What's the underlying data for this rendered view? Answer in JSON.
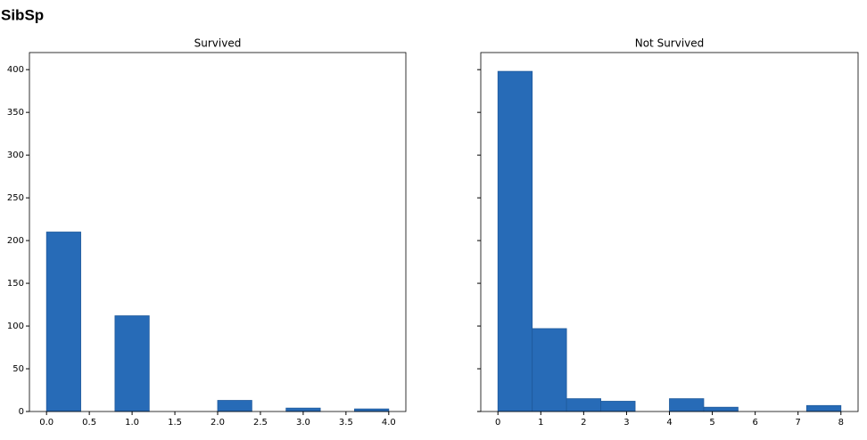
{
  "title": "SibSp",
  "chart_data": [
    {
      "type": "histogram",
      "title": "Survived",
      "color": "#276bb7",
      "bins": [
        0,
        0.4,
        0.8,
        1.2,
        1.6,
        2.0,
        2.4,
        2.8,
        3.2,
        3.6,
        4.0
      ],
      "values": [
        210,
        0,
        112,
        0,
        0,
        13,
        0,
        4,
        0,
        3
      ],
      "xlim": [
        -0.2,
        4.2
      ],
      "ylim": [
        0,
        420
      ],
      "xticks": [
        {
          "value": 0,
          "label": "0.0"
        },
        {
          "value": 0.5,
          "label": "0.5"
        },
        {
          "value": 1,
          "label": "1.0"
        },
        {
          "value": 1.5,
          "label": "1.5"
        },
        {
          "value": 2,
          "label": "2.0"
        },
        {
          "value": 2.5,
          "label": "2.5"
        },
        {
          "value": 3,
          "label": "3.0"
        },
        {
          "value": 3.5,
          "label": "3.5"
        },
        {
          "value": 4,
          "label": "4.0"
        }
      ],
      "yticks": [
        0,
        50,
        100,
        150,
        200,
        250,
        300,
        350,
        400
      ]
    },
    {
      "type": "histogram",
      "title": "Not Survived",
      "color": "#276bb7",
      "bins": [
        0,
        0.8,
        1.6,
        2.4,
        3.2,
        4.0,
        4.8,
        5.6,
        6.4,
        7.2,
        8.0
      ],
      "values": [
        398,
        97,
        15,
        12,
        0,
        15,
        5,
        0,
        0,
        7
      ],
      "xlim": [
        -0.4,
        8.4
      ],
      "ylim": [
        0,
        420
      ],
      "xticks": [
        0,
        1,
        2,
        3,
        4,
        5,
        6,
        7,
        8
      ]
    }
  ]
}
